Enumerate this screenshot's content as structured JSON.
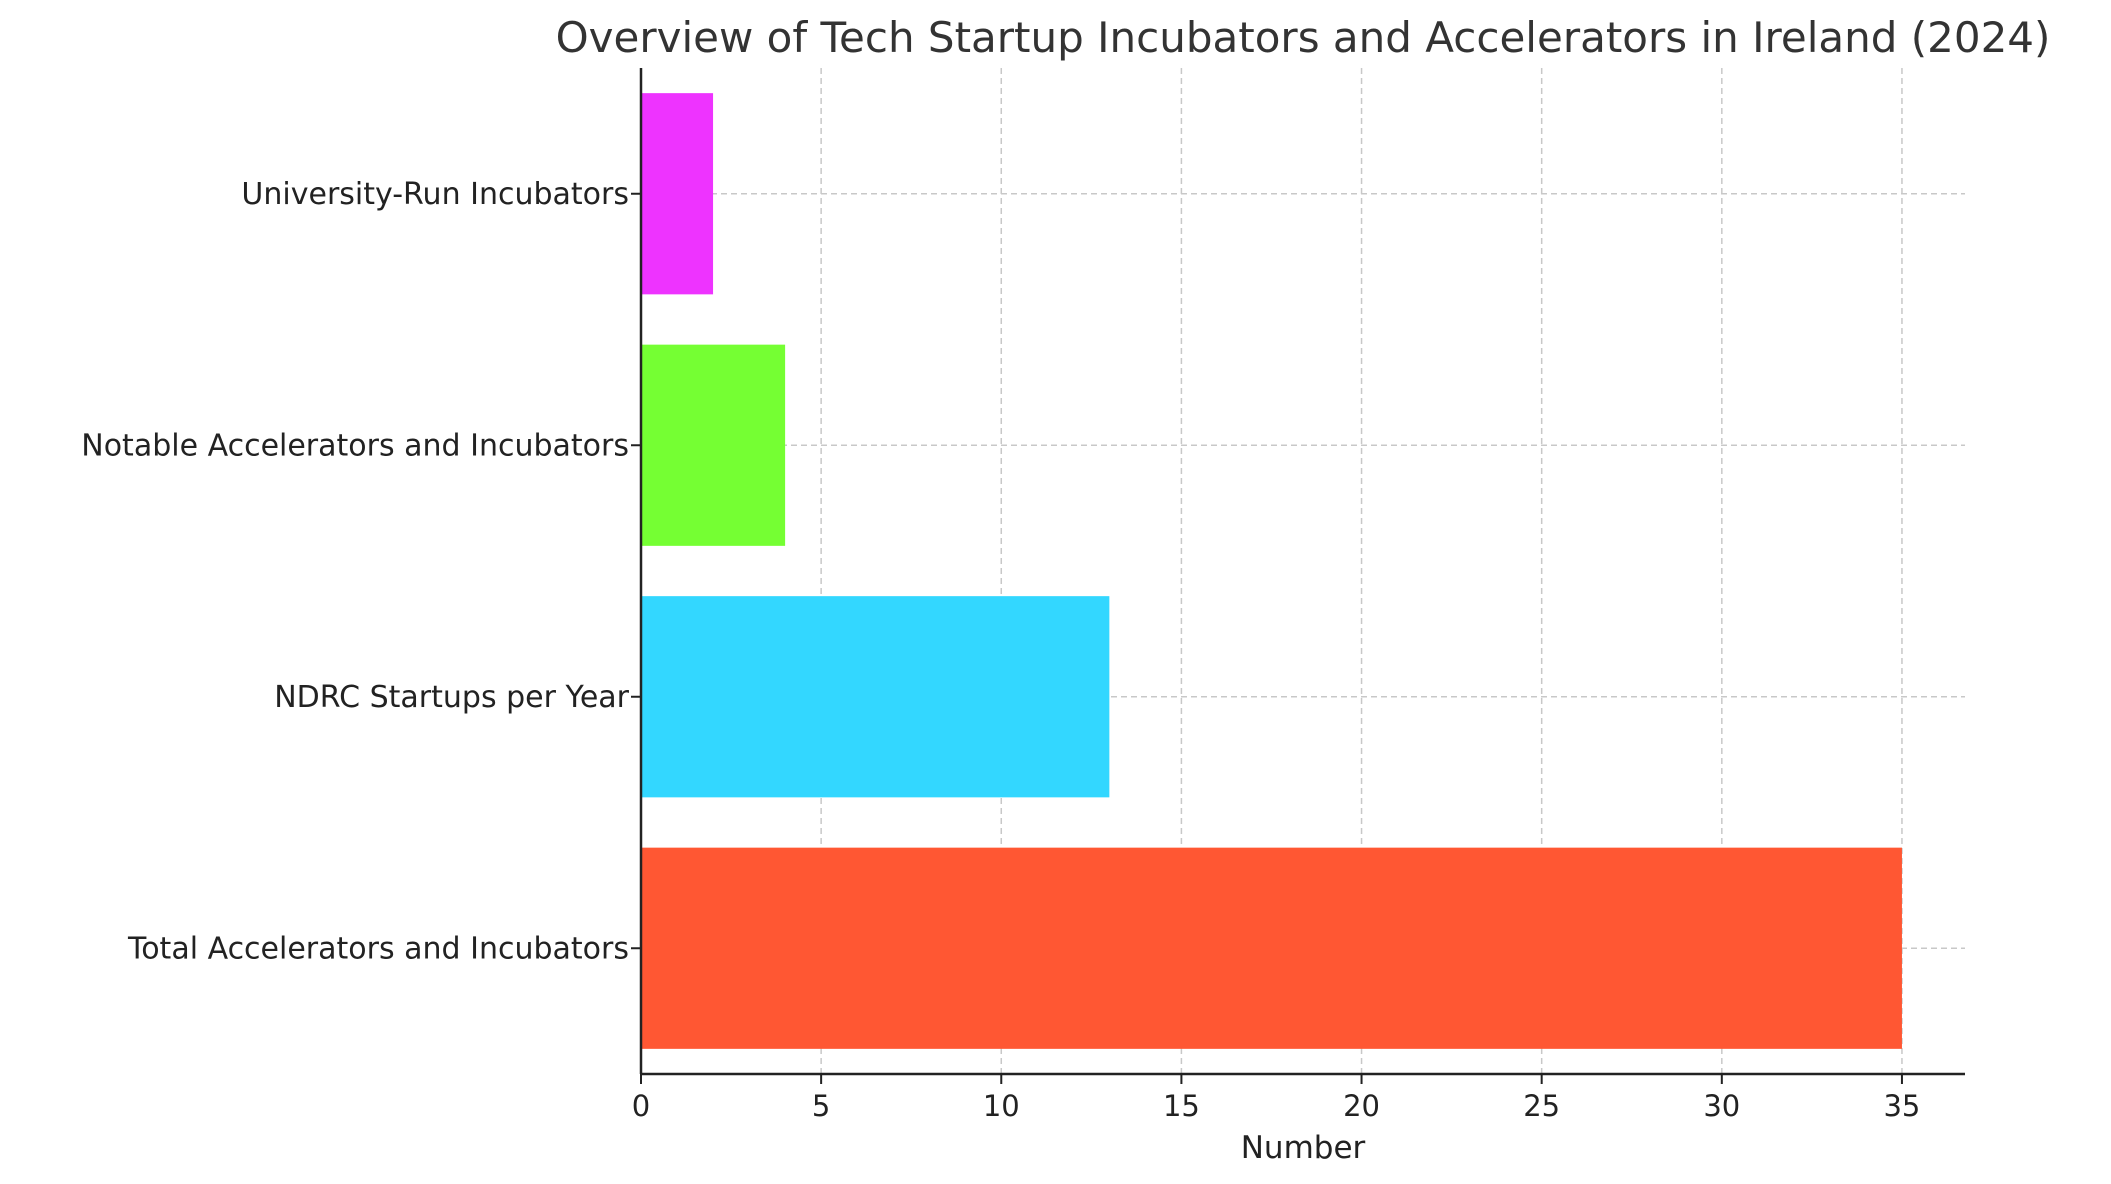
{
  "chart_data": {
    "type": "bar",
    "orientation": "horizontal",
    "title": "Overview of Tech Startup Incubators and Accelerators in Ireland (2024)",
    "xlabel": "Number",
    "ylabel": "",
    "categories": [
      "Total Accelerators and Incubators",
      "NDRC Startups per Year",
      "Notable Accelerators and Incubators",
      "University-Run Incubators"
    ],
    "values": [
      35,
      13,
      4,
      2
    ],
    "colors": [
      "#ff5733",
      "#33d7ff",
      "#75ff33",
      "#ee33ff"
    ],
    "xlim": [
      0,
      36.75
    ],
    "xticks": [
      0,
      5,
      10,
      15,
      20,
      25,
      30,
      35
    ],
    "grid": true,
    "legend": "none"
  }
}
